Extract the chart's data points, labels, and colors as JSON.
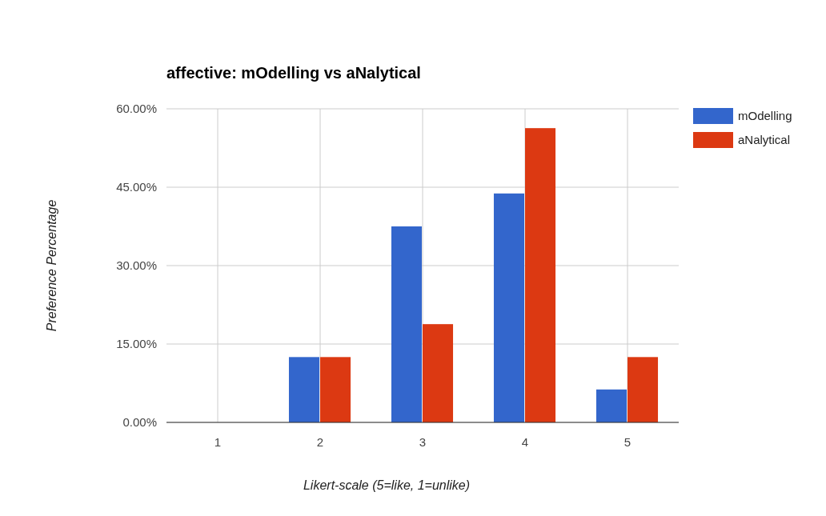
{
  "chart_data": {
    "type": "bar",
    "title": "affective: mOdelling vs aNalytical",
    "xlabel": "Likert-scale (5=like, 1=unlike)",
    "ylabel": "Preference Percentage",
    "categories": [
      "1",
      "2",
      "3",
      "4",
      "5"
    ],
    "series": [
      {
        "name": "mOdelling",
        "color": "#3366cc",
        "values": [
          0,
          12.5,
          37.5,
          43.8,
          6.3
        ]
      },
      {
        "name": "aNalytical",
        "color": "#dc3912",
        "values": [
          0,
          12.5,
          18.8,
          56.3,
          12.5
        ]
      }
    ],
    "ylim": [
      0,
      60
    ],
    "yticks": [
      {
        "value": 0,
        "label": "0.00%"
      },
      {
        "value": 15,
        "label": "15.00%"
      },
      {
        "value": 30,
        "label": "30.00%"
      },
      {
        "value": 45,
        "label": "45.00%"
      },
      {
        "value": 60,
        "label": "60.00%"
      }
    ],
    "grid": true,
    "legend": "top right"
  }
}
